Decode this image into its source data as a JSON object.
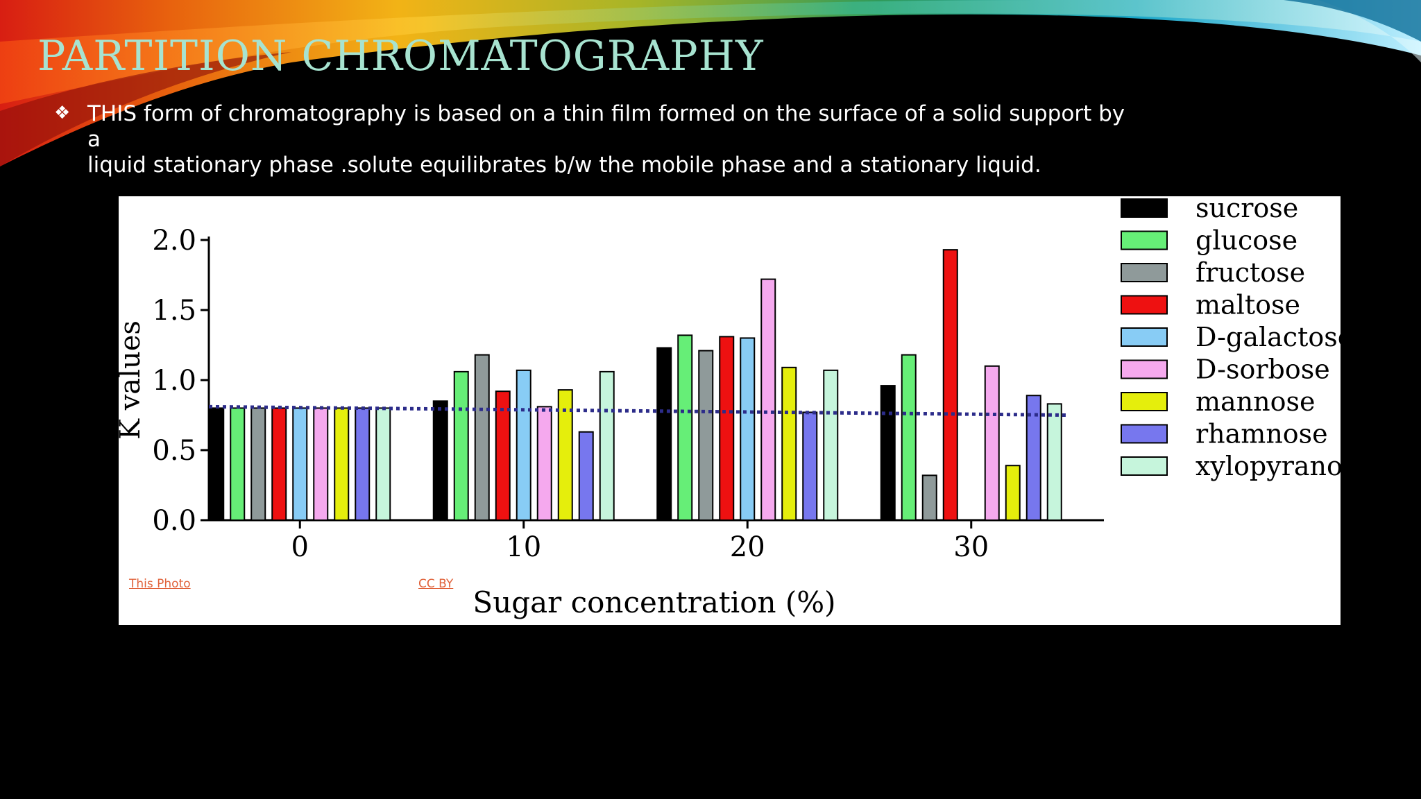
{
  "slide": {
    "title": "PARTITION CHROMATOGRAPHY",
    "bullet_glyph": "❖",
    "bullet_text_line1": "THIS form of chromatography is based on a thin film formed on the surface of a solid support by a",
    "bullet_text_line2": "liquid stationary phase .solute equilibrates b/w the mobile phase and a stationary liquid."
  },
  "credits": {
    "photo_link": "This Photo",
    "license_link": "CC BY"
  },
  "colors": {
    "background": "#000000",
    "title": "#a7e3d0",
    "link": "#e0623a"
  },
  "chart_data": {
    "type": "bar",
    "xlabel": "Sugar concentration  (%)",
    "ylabel": "K values",
    "ylim": [
      0,
      2.0
    ],
    "yticks": [
      "0.0",
      "0.5",
      "1.0",
      "1.5",
      "2.0"
    ],
    "categories": [
      "0",
      "10",
      "20",
      "30"
    ],
    "legend_position": "right",
    "trend_line": {
      "style": "dotted",
      "color": "#2c2c8a",
      "values": [
        0.81,
        0.75
      ]
    },
    "series": [
      {
        "name": "sucrose",
        "color": "#000000",
        "values": [
          0.8,
          0.85,
          1.23,
          0.96
        ]
      },
      {
        "name": "glucose",
        "color": "#66ee77",
        "values": [
          0.8,
          1.06,
          1.32,
          1.18
        ]
      },
      {
        "name": "fructose",
        "color": "#8f9a9a",
        "values": [
          0.8,
          1.18,
          1.21,
          0.32
        ]
      },
      {
        "name": "maltose",
        "color": "#ee1111",
        "values": [
          0.8,
          0.92,
          1.31,
          1.93
        ]
      },
      {
        "name": "D-galactose",
        "color": "#88ccf5",
        "values": [
          0.8,
          1.07,
          1.3,
          0.0
        ]
      },
      {
        "name": "D-sorbose",
        "color": "#f5a9ee",
        "values": [
          0.8,
          0.81,
          1.72,
          1.1
        ]
      },
      {
        "name": "mannose",
        "color": "#e5ee0c",
        "values": [
          0.8,
          0.93,
          1.09,
          0.39
        ]
      },
      {
        "name": "rhamnose",
        "color": "#7777ee",
        "values": [
          0.8,
          0.63,
          0.77,
          0.89
        ]
      },
      {
        "name": "xylopyranose",
        "color": "#c6f5dc",
        "values": [
          0.8,
          1.06,
          1.07,
          0.83
        ]
      }
    ]
  }
}
